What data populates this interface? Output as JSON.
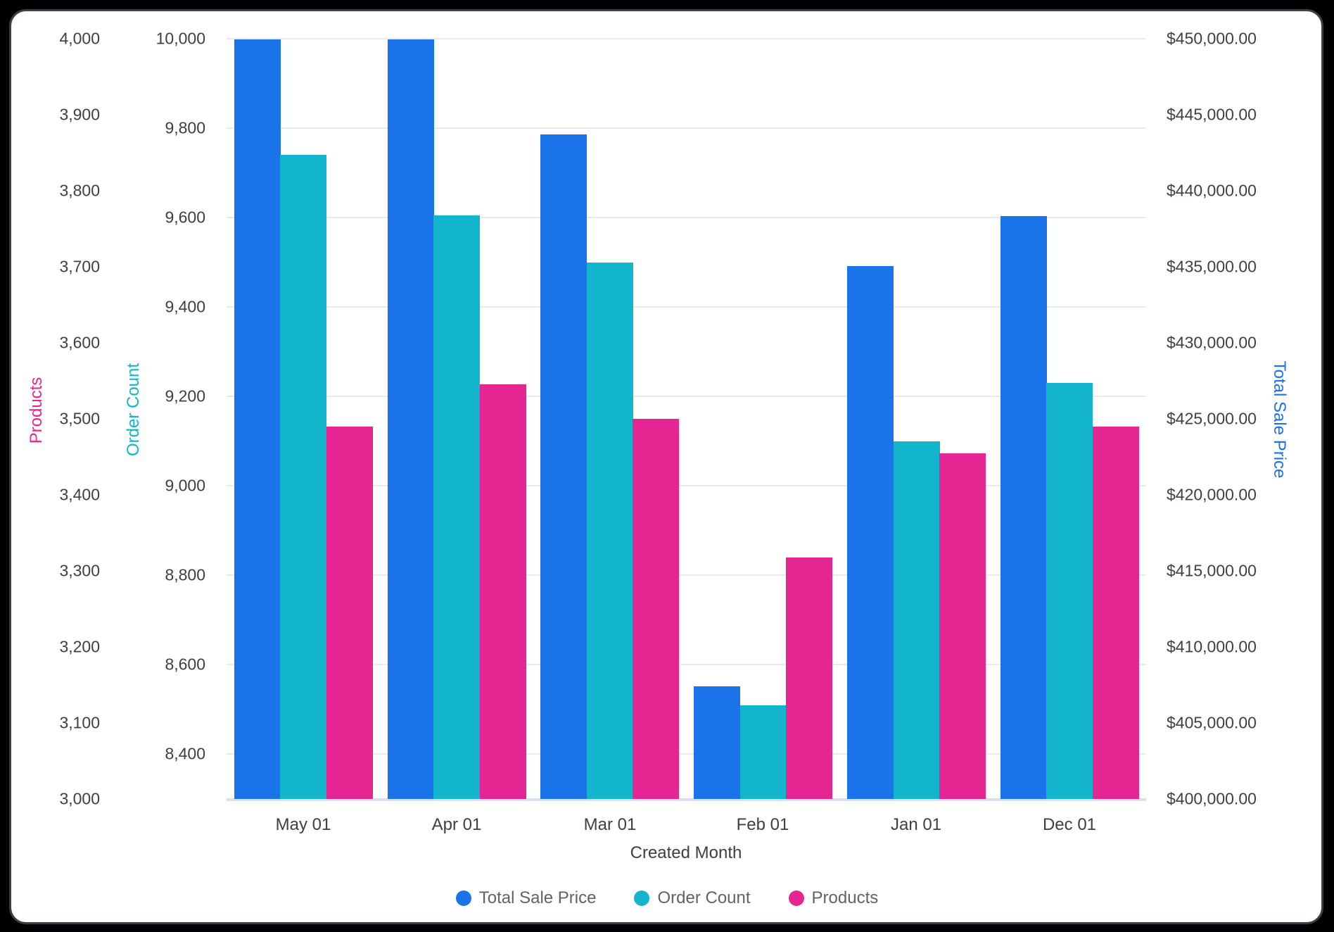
{
  "chart_data": {
    "type": "bar",
    "categories": [
      "May 01",
      "Apr 01",
      "Mar 01",
      "Feb 01",
      "Jan 01",
      "Dec 01"
    ],
    "x_axis": {
      "title": "Created Month"
    },
    "series": [
      {
        "name": "Total Sale Price",
        "color": "#1A73E8",
        "axis": "money",
        "values": [
          449950,
          449950,
          443700,
          407400,
          435050,
          438350
        ]
      },
      {
        "name": "Order Count",
        "color": "#12B5CB",
        "axis": "order",
        "values": [
          9740,
          9605,
          9500,
          8510,
          9100,
          9230
        ]
      },
      {
        "name": "Products",
        "color": "#E52592",
        "axis": "products",
        "values": [
          3490,
          3545,
          3500,
          3318,
          3455,
          3490
        ]
      }
    ],
    "axes": {
      "products": {
        "title": "Products",
        "color": "#E52592",
        "side": "outer-left",
        "min": 3000,
        "max": 4000,
        "ticks": [
          {
            "v": 4000,
            "label": "4,000"
          },
          {
            "v": 3900,
            "label": "3,900"
          },
          {
            "v": 3800,
            "label": "3,800"
          },
          {
            "v": 3700,
            "label": "3,700"
          },
          {
            "v": 3600,
            "label": "3,600"
          },
          {
            "v": 3500,
            "label": "3,500"
          },
          {
            "v": 3400,
            "label": "3,400"
          },
          {
            "v": 3300,
            "label": "3,300"
          },
          {
            "v": 3200,
            "label": "3,200"
          },
          {
            "v": 3100,
            "label": "3,100"
          },
          {
            "v": 3000,
            "label": "3,000"
          }
        ]
      },
      "order": {
        "title": "Order Count",
        "color": "#12B5CB",
        "side": "inner-left",
        "min": 8300,
        "max": 10000,
        "gridlines": true,
        "ticks": [
          {
            "v": 10000,
            "label": "10,000"
          },
          {
            "v": 9800,
            "label": "9,800"
          },
          {
            "v": 9600,
            "label": "9,600"
          },
          {
            "v": 9400,
            "label": "9,400"
          },
          {
            "v": 9200,
            "label": "9,200"
          },
          {
            "v": 9000,
            "label": "9,000"
          },
          {
            "v": 8800,
            "label": "8,800"
          },
          {
            "v": 8600,
            "label": "8,600"
          },
          {
            "v": 8400,
            "label": "8,400"
          }
        ]
      },
      "money": {
        "title": "Total Sale Price",
        "color": "#1A73E8",
        "side": "right",
        "min": 400000,
        "max": 450000,
        "ticks": [
          {
            "v": 450000,
            "label": "$450,000.00"
          },
          {
            "v": 445000,
            "label": "$445,000.00"
          },
          {
            "v": 440000,
            "label": "$440,000.00"
          },
          {
            "v": 435000,
            "label": "$435,000.00"
          },
          {
            "v": 430000,
            "label": "$430,000.00"
          },
          {
            "v": 425000,
            "label": "$425,000.00"
          },
          {
            "v": 420000,
            "label": "$420,000.00"
          },
          {
            "v": 415000,
            "label": "$415,000.00"
          },
          {
            "v": 410000,
            "label": "$410,000.00"
          },
          {
            "v": 405000,
            "label": "$405,000.00"
          },
          {
            "v": 400000,
            "label": "$400,000.00"
          }
        ]
      }
    },
    "legend": {
      "position": "bottom",
      "items": [
        "Total Sale Price",
        "Order Count",
        "Products"
      ]
    }
  },
  "colors": {
    "background": "#000000",
    "card_background": "#FFFFFF",
    "card_border": "#3A4045",
    "gridline": "#E8EAED",
    "axis_line": "#D9DEF0",
    "tick_text": "#3C4043"
  }
}
